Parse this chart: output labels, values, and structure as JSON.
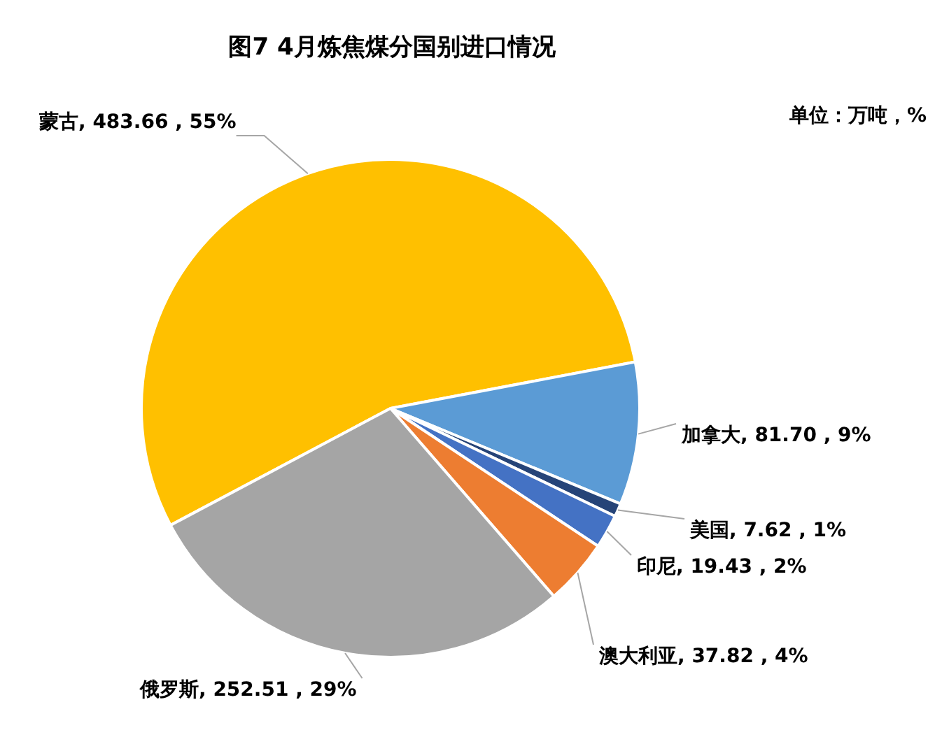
{
  "chart_data": {
    "type": "pie",
    "title": "图7 4月炼焦煤分国别进口情况",
    "annotations": [
      "单位：万吨，%"
    ],
    "categories": [
      "蒙古",
      "加拿大",
      "美国",
      "印尼",
      "澳大利亚",
      "俄罗斯"
    ],
    "values": [
      483.66,
      81.7,
      7.62,
      19.43,
      37.82,
      252.51
    ],
    "colors": [
      "#ffc000",
      "#5b9bd5",
      "#264478",
      "#4472c4",
      "#ed7d31",
      "#a5a5a5"
    ],
    "value_labels": [
      "483.66 , 55%",
      "81.70 , 9%",
      "7.62 , 1%",
      "19.43 , 2%",
      "37.82 , 4%",
      "252.51 , 29%"
    ],
    "legend": false
  }
}
